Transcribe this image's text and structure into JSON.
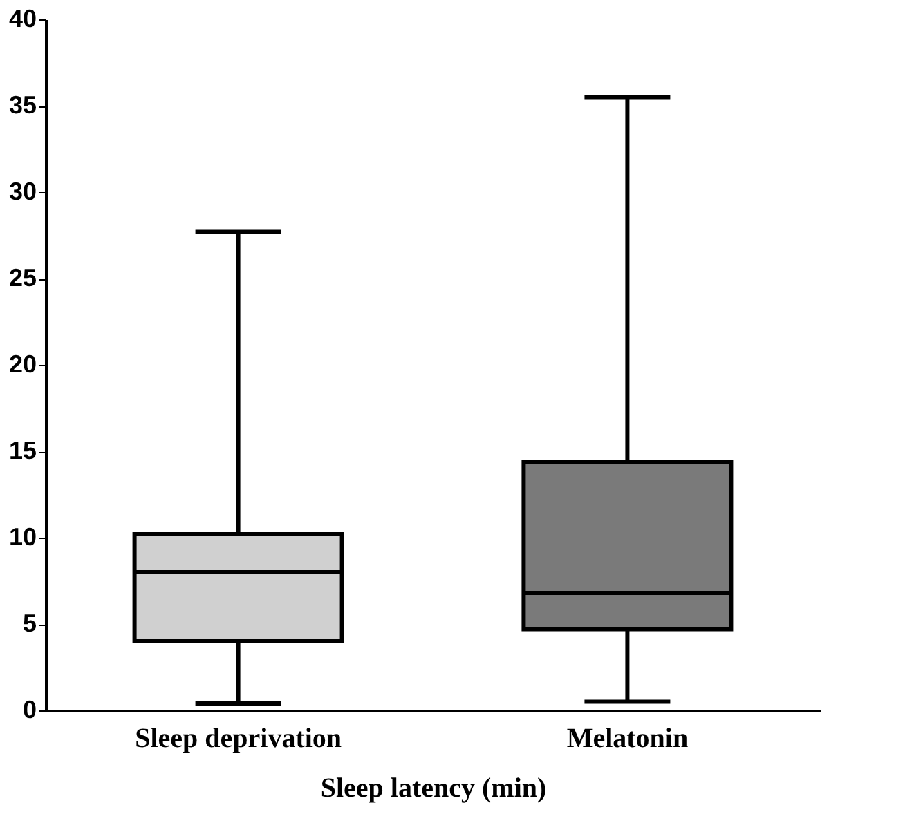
{
  "chart_data": {
    "type": "box",
    "xlabel": "Sleep latency (min)",
    "categories": [
      "Sleep deprivation",
      "Melatonin"
    ],
    "colors": [
      "#d0d0d0",
      "#7a7a7a"
    ],
    "boxes": [
      {
        "low": 0.4,
        "q1": 4.0,
        "median": 8.0,
        "q3": 10.2,
        "high": 27.7
      },
      {
        "low": 0.5,
        "q1": 4.7,
        "median": 6.8,
        "q3": 14.4,
        "high": 35.5
      }
    ],
    "ylim": [
      0,
      40
    ],
    "yticks": [
      0,
      5,
      10,
      15,
      20,
      25,
      30,
      35,
      40
    ],
    "grid": false
  }
}
